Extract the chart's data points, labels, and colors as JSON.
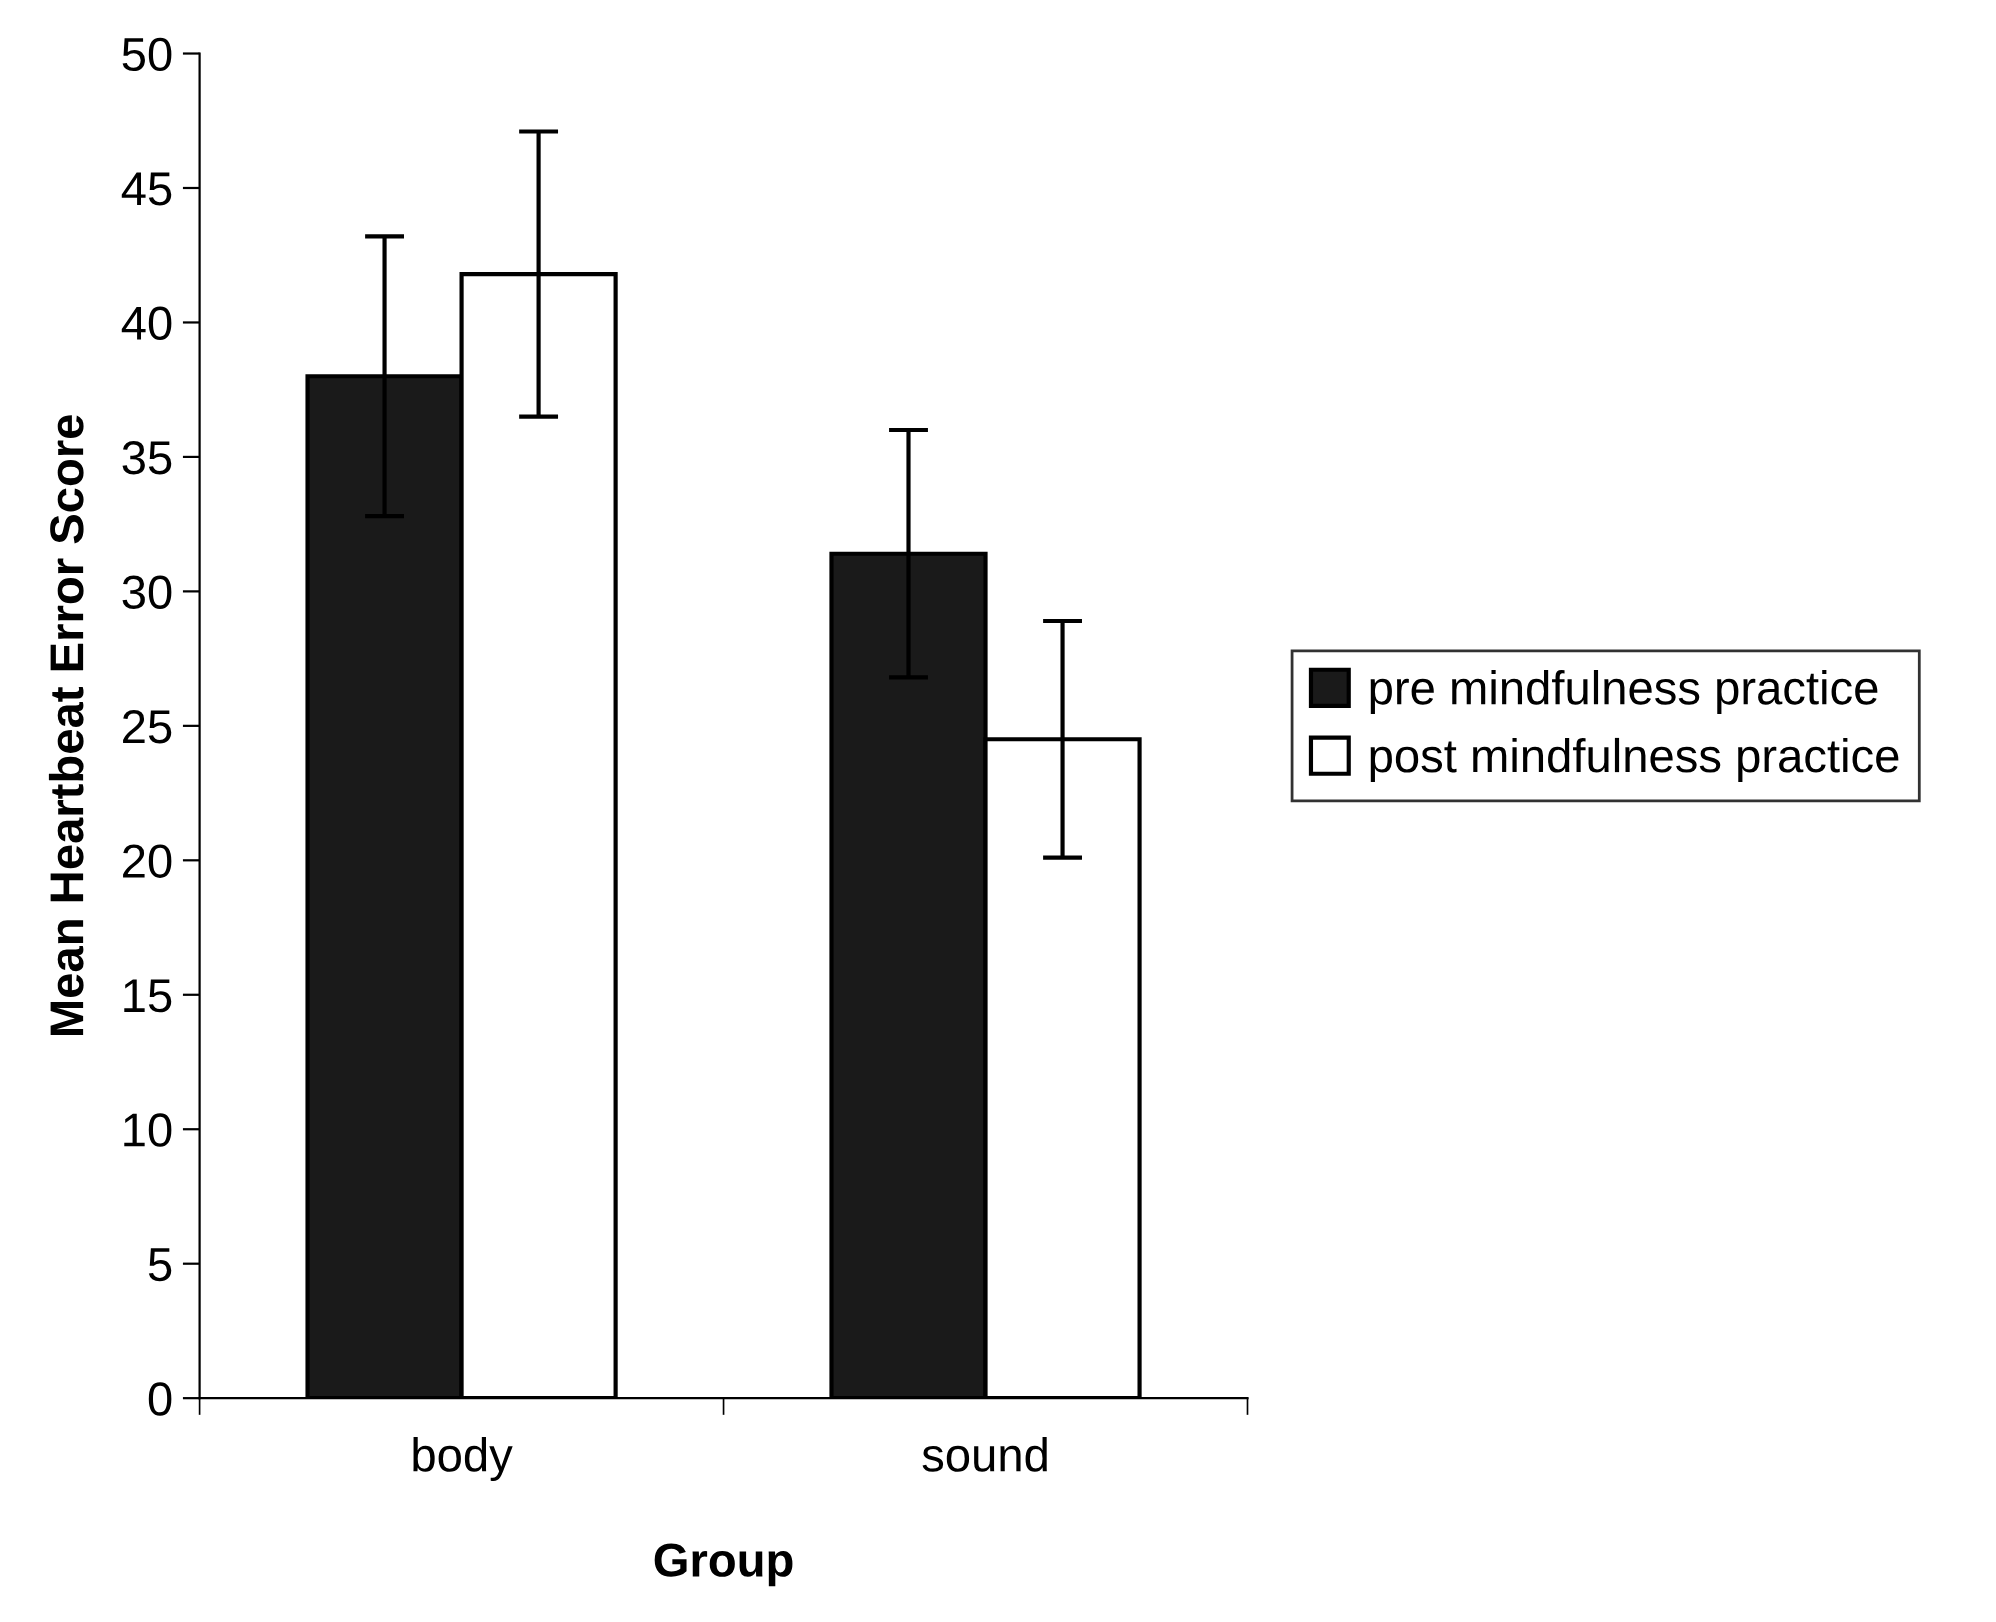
{
  "chart_data": {
    "type": "bar",
    "xlabel": "Group",
    "ylabel": "Mean Heartbeat Error Score",
    "categories": [
      "body",
      "sound"
    ],
    "series": [
      {
        "name": "pre mindfulness practice",
        "color": "#1a1a1a",
        "values": [
          38.0,
          31.4
        ],
        "errors": [
          5.2,
          4.6
        ]
      },
      {
        "name": "post mindfulness practice",
        "color": "#ffffff",
        "values": [
          41.8,
          24.5
        ],
        "errors": [
          5.3,
          4.4
        ]
      }
    ],
    "ylim": [
      0,
      50
    ],
    "yticks": [
      0,
      5,
      10,
      15,
      20,
      25,
      30,
      35,
      40,
      45,
      50
    ],
    "grid": false,
    "legend": "right"
  }
}
